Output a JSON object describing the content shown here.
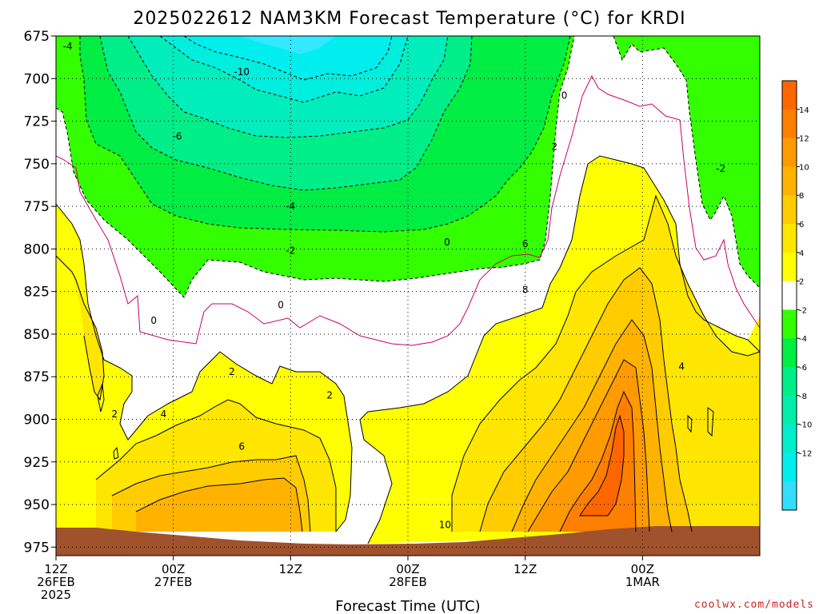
{
  "chart_data": {
    "type": "heatmap",
    "title": "2025022612 NAM3KM Forecast Temperature (°C) for KRDI",
    "xlabel": "Forecast Time (UTC)",
    "ylabel": "",
    "y_axis": {
      "ticks": [
        675,
        700,
        725,
        750,
        775,
        800,
        825,
        850,
        875,
        900,
        925,
        950,
        975
      ],
      "inverted": true,
      "range": [
        675,
        980
      ]
    },
    "x_axis": {
      "range_hours": [
        0,
        36
      ],
      "ticks": [
        {
          "hour": 0,
          "labels": [
            "12Z",
            "26FEB",
            "2025"
          ]
        },
        {
          "hour": 6,
          "labels": [
            "00Z",
            "27FEB"
          ]
        },
        {
          "hour": 12,
          "labels": [
            "12Z"
          ]
        },
        {
          "hour": 18,
          "labels": [
            "00Z",
            "28FEB"
          ]
        },
        {
          "hour": 24,
          "labels": [
            "12Z"
          ]
        },
        {
          "hour": 30,
          "labels": [
            "00Z",
            "1MAR"
          ]
        }
      ]
    },
    "colorbar": {
      "ticks": [
        "14",
        "12",
        "10",
        "8",
        "6",
        "4",
        "2",
        "-2",
        "-4",
        "-6",
        "-8",
        "-10",
        "-12"
      ],
      "colors": [
        "#ff6600",
        "#ff7f00",
        "#ff9a00",
        "#ffb300",
        "#ffcc00",
        "#ffe600",
        "#ffff00",
        "#ffffff",
        "#33ff00",
        "#00ee44",
        "#00ee88",
        "#00eeaa",
        "#00eecc",
        "#00eeee",
        "#33ddff"
      ]
    },
    "grid": "on",
    "contour_labels": [
      {
        "value": "-4",
        "h": 0.6,
        "p": 681
      },
      {
        "value": "-10",
        "h": 9.5,
        "p": 696
      },
      {
        "value": "-6",
        "h": 6.2,
        "p": 734
      },
      {
        "value": "-4",
        "h": 12.0,
        "p": 775
      },
      {
        "value": "-2",
        "h": 12.0,
        "p": 801
      },
      {
        "value": "-2",
        "h": 34.0,
        "p": 753
      },
      {
        "value": "0",
        "h": 5.0,
        "p": 842
      },
      {
        "value": "0",
        "h": 11.5,
        "p": 833
      },
      {
        "value": "0",
        "h": 20.0,
        "p": 796
      },
      {
        "value": "0",
        "h": 26.0,
        "p": 710
      },
      {
        "value": "2",
        "h": 9.0,
        "p": 872
      },
      {
        "value": "2",
        "h": 14.0,
        "p": 886
      },
      {
        "value": "2",
        "h": 3.0,
        "p": 897
      },
      {
        "value": "2",
        "h": 25.5,
        "p": 740
      },
      {
        "value": "4",
        "h": 5.5,
        "p": 897
      },
      {
        "value": "4",
        "h": 32.0,
        "p": 869
      },
      {
        "value": "6",
        "h": 9.5,
        "p": 916
      },
      {
        "value": "6",
        "h": 24.0,
        "p": 797
      },
      {
        "value": "8",
        "h": 24.0,
        "p": 824
      },
      {
        "value": "10",
        "h": 19.9,
        "p": 962
      }
    ]
  },
  "credit": "coolwx.com/models"
}
